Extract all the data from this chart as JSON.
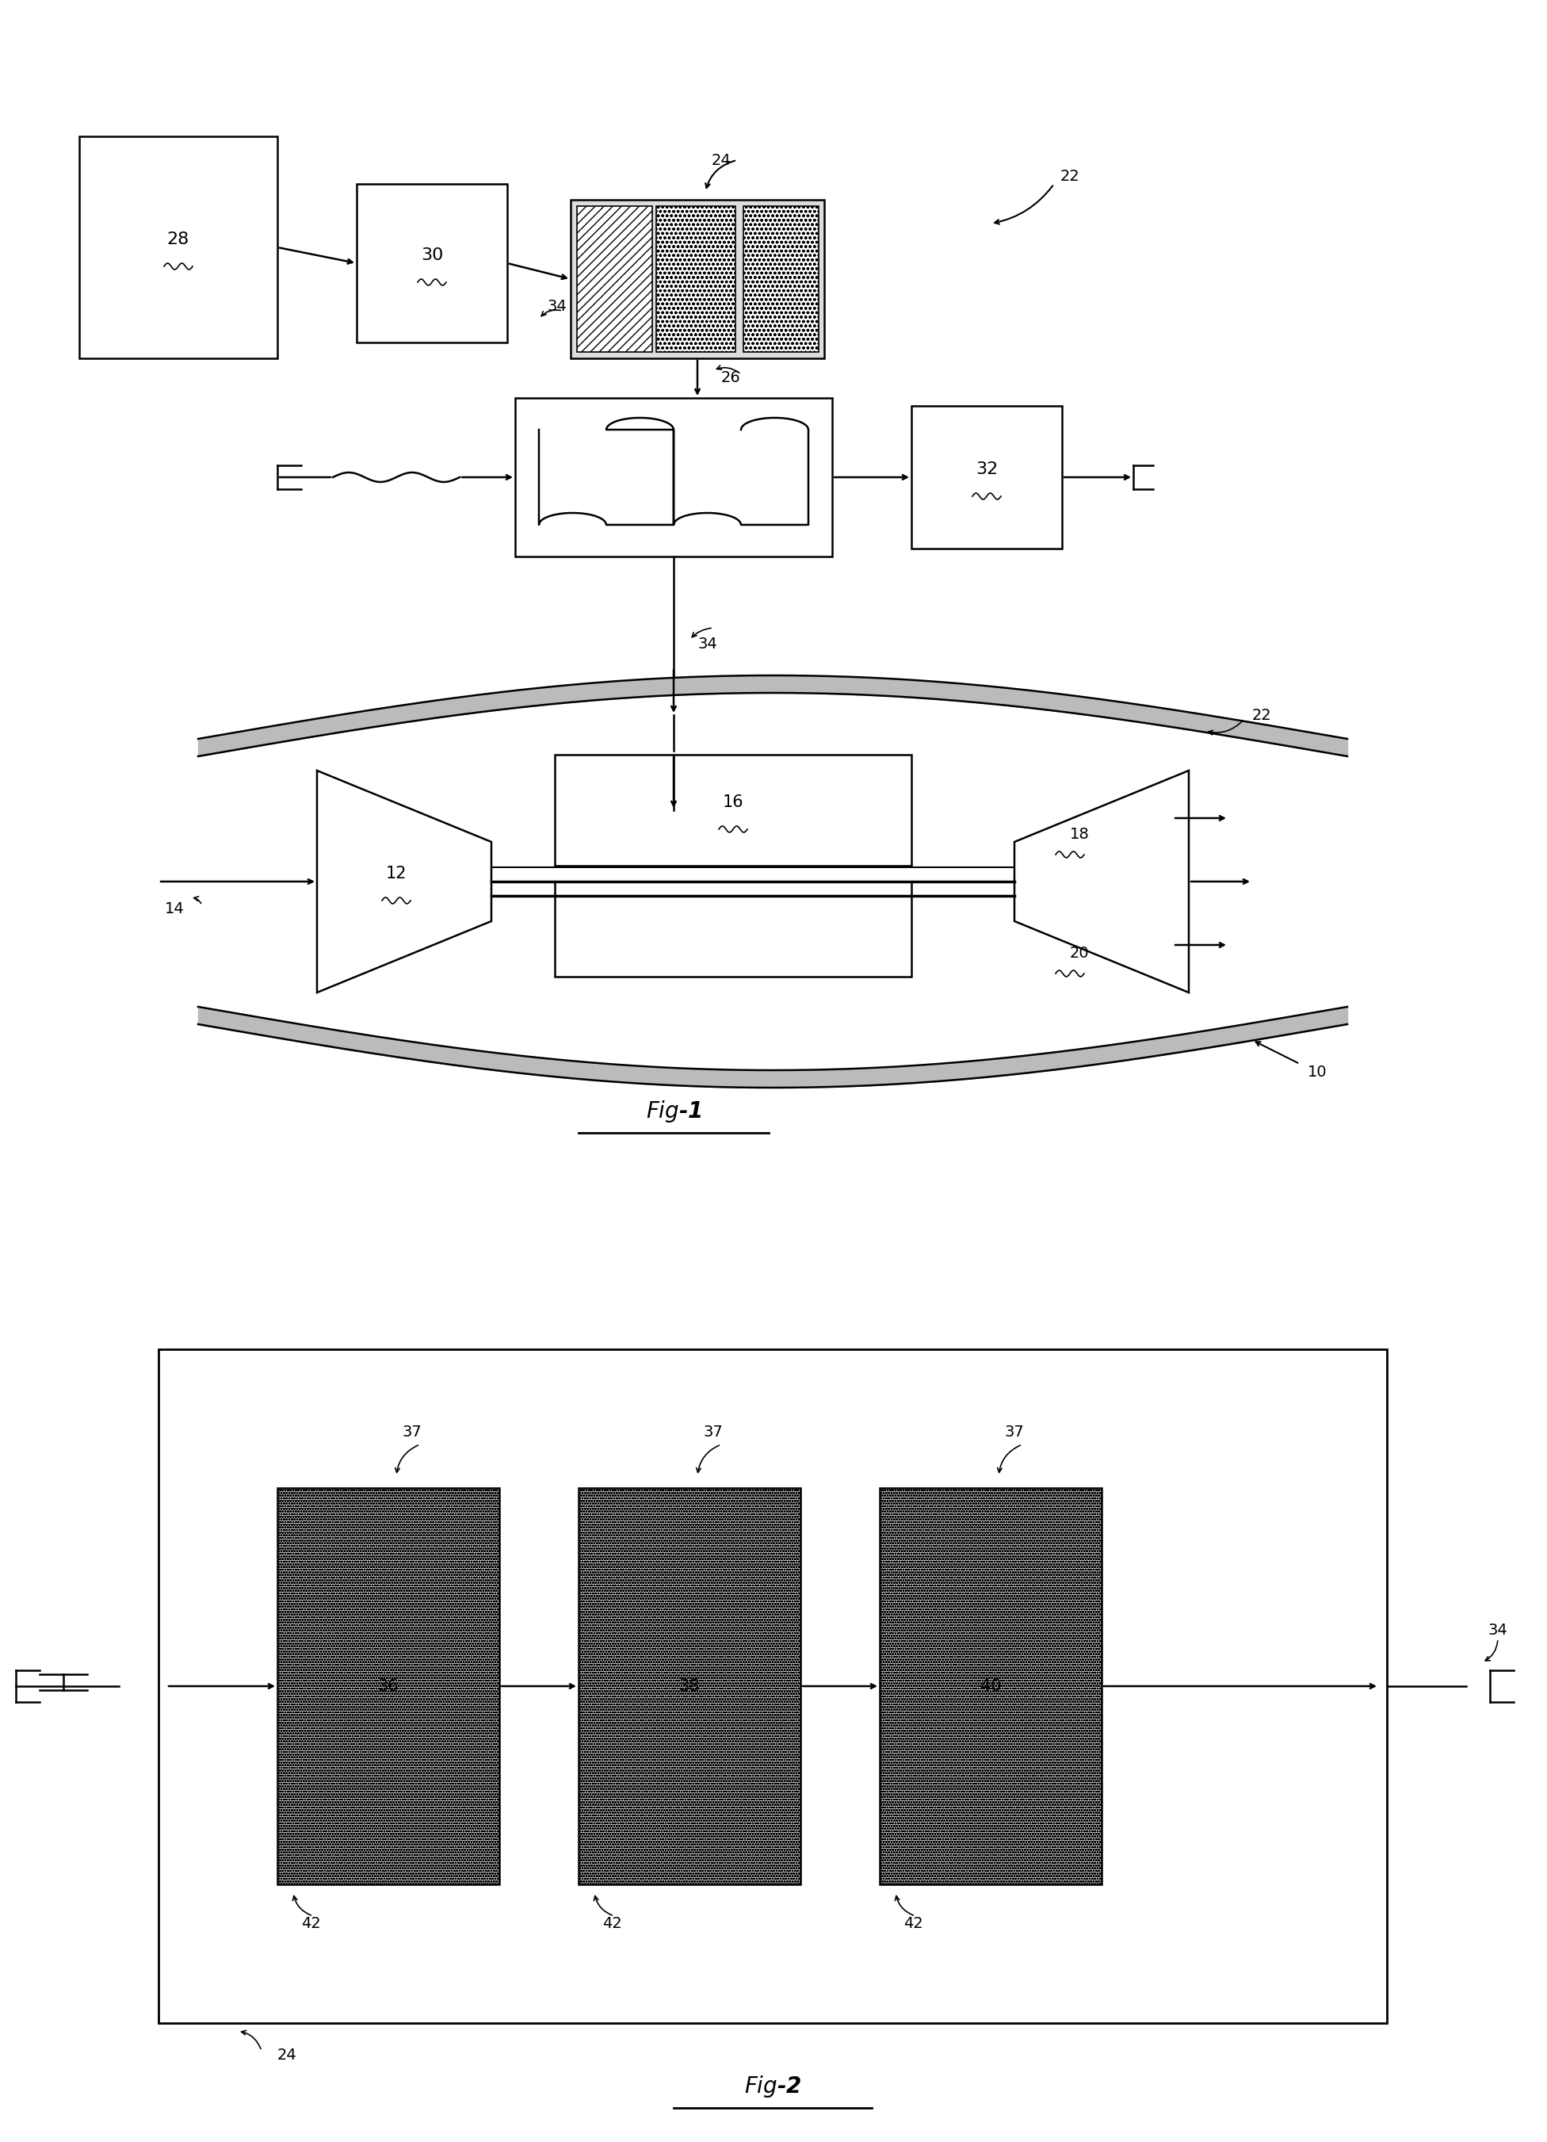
{
  "bg_color": "#ffffff",
  "line_color": "#000000",
  "fig1_title": "Fig-1",
  "fig2_title": "Fig-2",
  "label_28": "28",
  "label_30": "30",
  "label_24": "24",
  "label_26": "26",
  "label_32": "32",
  "label_34": "34",
  "label_22": "22",
  "label_10": "10",
  "label_12": "12",
  "label_14": "14",
  "label_16": "16",
  "label_18": "18",
  "label_20": "20",
  "label_36": "36",
  "label_37": "37",
  "label_38": "38",
  "label_40": "40",
  "label_42": "42",
  "hatch_color": "#888888"
}
